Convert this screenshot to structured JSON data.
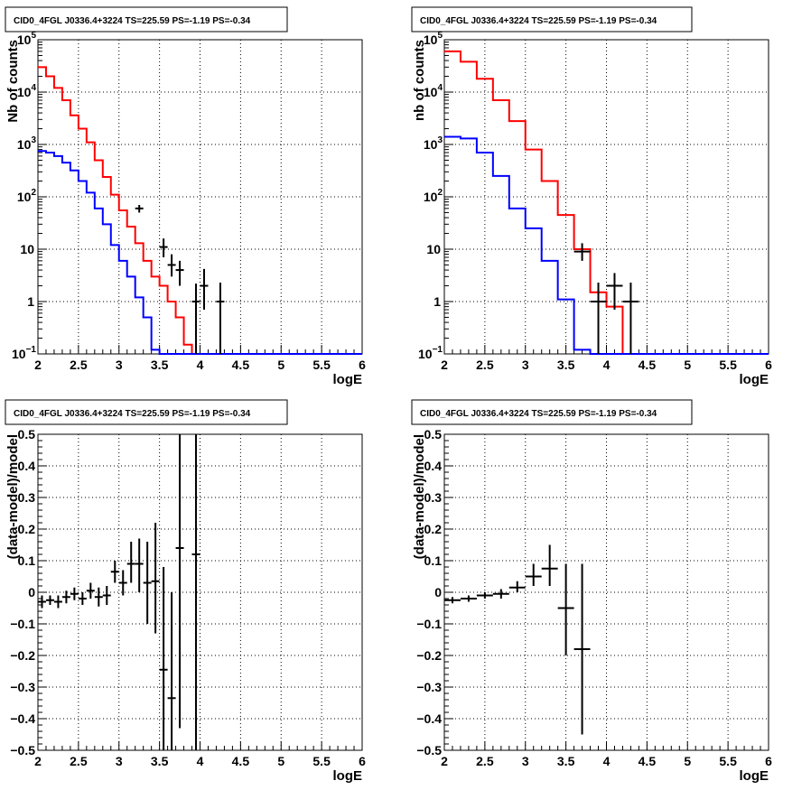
{
  "chart_data": [
    {
      "type": "histogram-step",
      "title": "CID0_4FGL J0336.4+3224 TS=225.59 PS=-1.19 PS=-0.34",
      "xlabel": "logE",
      "ylabel": "Nb of counts",
      "xlim": [
        2,
        6
      ],
      "ylim": [
        0.1,
        100000
      ],
      "yscale": "log",
      "grid": true,
      "xticks": [
        "2",
        "2.5",
        "3",
        "3.5",
        "4",
        "4.5",
        "5",
        "5.5",
        "6"
      ],
      "yticks": [
        {
          "base": "10",
          "exp": "−1"
        },
        {
          "base": "1",
          "exp": ""
        },
        {
          "base": "10",
          "exp": ""
        },
        {
          "base": "10",
          "exp": "2"
        },
        {
          "base": "10",
          "exp": "3"
        },
        {
          "base": "10",
          "exp": "4"
        },
        {
          "base": "10",
          "exp": "5"
        }
      ],
      "bin_edges": [
        2.0,
        2.1,
        2.2,
        2.3,
        2.4,
        2.5,
        2.6,
        2.7,
        2.8,
        2.9,
        3.0,
        3.1,
        3.2,
        3.3,
        3.4,
        3.5,
        3.6,
        3.7,
        3.8,
        3.9,
        4.0,
        4.1,
        4.2,
        4.3,
        4.4,
        4.5,
        4.6,
        4.7,
        4.8,
        4.9,
        5.0,
        5.1,
        5.2,
        5.3,
        5.4,
        5.5,
        5.6,
        5.7,
        5.8,
        5.9,
        6.0
      ],
      "series": [
        {
          "color": "#ff0000",
          "values": [
            30000,
            20000,
            12000,
            7000,
            3600,
            2000,
            1100,
            500,
            240,
            110,
            55,
            27,
            13,
            6,
            3,
            2,
            1,
            0.5,
            0.15,
            0.1,
            0.1,
            0.1,
            0.1,
            0.1,
            0.1,
            0.1,
            0.1,
            0.1,
            0.1,
            0.1,
            0.1,
            0.1,
            0.1,
            0.1,
            0.1,
            0.1,
            0.1,
            0.1,
            0.1,
            0.1
          ]
        },
        {
          "color": "#0000ff",
          "values": [
            750,
            700,
            600,
            450,
            320,
            200,
            120,
            60,
            30,
            12,
            6,
            3,
            1.2,
            0.5,
            0.12,
            0.1,
            0.1,
            0.1,
            0.1,
            0.1,
            0.1,
            0.1,
            0.1,
            0.1,
            0.1,
            0.1,
            0.1,
            0.1,
            0.1,
            0.1,
            0.1,
            0.1,
            0.1,
            0.1,
            0.1,
            0.1,
            0.1,
            0.1,
            0.1,
            0.1
          ]
        }
      ],
      "points": [
        {
          "x": 3.25,
          "y": 60,
          "ylo": 50,
          "yhi": 70,
          "xerr": 0.05
        },
        {
          "x": 3.55,
          "y": 11,
          "ylo": 7,
          "yhi": 16,
          "xerr": 0.05
        },
        {
          "x": 3.65,
          "y": 5,
          "ylo": 3,
          "yhi": 8,
          "xerr": 0.05
        },
        {
          "x": 3.75,
          "y": 4,
          "ylo": 2,
          "yhi": 6,
          "xerr": 0.05
        },
        {
          "x": 3.95,
          "y": 1,
          "ylo": 0.1,
          "yhi": 2.2,
          "xerr": 0.05
        },
        {
          "x": 4.05,
          "y": 2,
          "ylo": 0.7,
          "yhi": 4.2,
          "xerr": 0.05
        },
        {
          "x": 4.25,
          "y": 1,
          "ylo": 0.1,
          "yhi": 2.3,
          "xerr": 0.05
        }
      ]
    },
    {
      "type": "histogram-step",
      "title": "CID0_4FGL J0336.4+3224 TS=225.59 PS=-1.19 PS=-0.34",
      "xlabel": "logE",
      "ylabel": "nb of counts",
      "xlim": [
        2,
        6
      ],
      "ylim": [
        0.1,
        100000
      ],
      "yscale": "log",
      "grid": true,
      "xticks": [
        "2",
        "2.5",
        "3",
        "3.5",
        "4",
        "4.5",
        "5",
        "5.5",
        "6"
      ],
      "yticks": [
        {
          "base": "10",
          "exp": "−1"
        },
        {
          "base": "1",
          "exp": ""
        },
        {
          "base": "10",
          "exp": ""
        },
        {
          "base": "10",
          "exp": "2"
        },
        {
          "base": "10",
          "exp": "3"
        },
        {
          "base": "10",
          "exp": "4"
        },
        {
          "base": "10",
          "exp": "5"
        }
      ],
      "bin_edges": [
        2.0,
        2.2,
        2.4,
        2.6,
        2.8,
        3.0,
        3.2,
        3.4,
        3.6,
        3.8,
        4.0,
        4.2,
        4.4,
        4.6,
        4.8,
        5.0,
        5.2,
        5.4,
        5.6,
        5.8,
        6.0
      ],
      "series": [
        {
          "color": "#ff0000",
          "values": [
            60000,
            38000,
            18000,
            7000,
            2800,
            800,
            200,
            45,
            10,
            1.5,
            0.8,
            0.1,
            0.1,
            0.1,
            0.1,
            0.1,
            0.1,
            0.1,
            0.1,
            0.1
          ]
        },
        {
          "color": "#0000ff",
          "values": [
            1400,
            1300,
            700,
            250,
            60,
            25,
            6,
            1.1,
            0.12,
            0.1,
            0.1,
            0.1,
            0.1,
            0.1,
            0.1,
            0.1,
            0.1,
            0.1,
            0.1,
            0.1
          ]
        }
      ],
      "points": [
        {
          "x": 3.7,
          "y": 9,
          "ylo": 6,
          "yhi": 13,
          "xerr": 0.1
        },
        {
          "x": 3.9,
          "y": 1,
          "ylo": 0.1,
          "yhi": 2.3,
          "xerr": 0.1
        },
        {
          "x": 4.1,
          "y": 2,
          "ylo": 0.7,
          "yhi": 3.5,
          "xerr": 0.1
        },
        {
          "x": 4.3,
          "y": 1,
          "ylo": 0.1,
          "yhi": 2.3,
          "xerr": 0.1
        }
      ]
    },
    {
      "type": "scatter-errorbar",
      "title": "CID0_4FGL J0336.4+3224 TS=225.59 PS=-1.19 PS=-0.34",
      "xlabel": "logE",
      "ylabel": "(data-model)/model",
      "xlim": [
        2,
        6
      ],
      "ylim": [
        -0.5,
        0.5
      ],
      "grid": true,
      "xticks": [
        "2",
        "2.5",
        "3",
        "3.5",
        "4",
        "4.5",
        "5",
        "5.5",
        "6"
      ],
      "yticks": [
        "−0.5",
        "−0.4",
        "−0.3",
        "−0.2",
        "−0.1",
        "0",
        "0.1",
        "0.2",
        "0.3",
        "0.4",
        "0.5"
      ],
      "points": [
        {
          "x": 2.05,
          "y": -0.03,
          "ylo": -0.05,
          "yhi": -0.01,
          "xerr": 0.05
        },
        {
          "x": 2.15,
          "y": -0.025,
          "ylo": -0.04,
          "yhi": -0.01,
          "xerr": 0.05
        },
        {
          "x": 2.25,
          "y": -0.03,
          "ylo": -0.05,
          "yhi": -0.01,
          "xerr": 0.05
        },
        {
          "x": 2.35,
          "y": -0.015,
          "ylo": -0.035,
          "yhi": 0.005,
          "xerr": 0.05
        },
        {
          "x": 2.45,
          "y": -0.005,
          "ylo": -0.025,
          "yhi": 0.015,
          "xerr": 0.05
        },
        {
          "x": 2.55,
          "y": -0.02,
          "ylo": -0.04,
          "yhi": 0.0,
          "xerr": 0.05
        },
        {
          "x": 2.65,
          "y": 0.005,
          "ylo": -0.02,
          "yhi": 0.03,
          "xerr": 0.05
        },
        {
          "x": 2.75,
          "y": -0.015,
          "ylo": -0.045,
          "yhi": 0.015,
          "xerr": 0.05
        },
        {
          "x": 2.85,
          "y": -0.01,
          "ylo": -0.04,
          "yhi": 0.02,
          "xerr": 0.05
        },
        {
          "x": 2.95,
          "y": 0.065,
          "ylo": 0.03,
          "yhi": 0.1,
          "xerr": 0.05
        },
        {
          "x": 3.05,
          "y": 0.03,
          "ylo": -0.01,
          "yhi": 0.07,
          "xerr": 0.05
        },
        {
          "x": 3.15,
          "y": 0.09,
          "ylo": 0.03,
          "yhi": 0.16,
          "xerr": 0.05
        },
        {
          "x": 3.25,
          "y": 0.09,
          "ylo": 0.0,
          "yhi": 0.17,
          "xerr": 0.05
        },
        {
          "x": 3.35,
          "y": 0.03,
          "ylo": -0.1,
          "yhi": 0.16,
          "xerr": 0.05
        },
        {
          "x": 3.45,
          "y": 0.035,
          "ylo": -0.13,
          "yhi": 0.22,
          "xerr": 0.05
        },
        {
          "x": 3.55,
          "y": -0.245,
          "ylo": -0.5,
          "yhi": 0.08,
          "xerr": 0.05
        },
        {
          "x": 3.65,
          "y": -0.335,
          "ylo": -0.5,
          "yhi": 0.0,
          "xerr": 0.05
        },
        {
          "x": 3.75,
          "y": 0.14,
          "ylo": -0.43,
          "yhi": 0.5,
          "xerr": 0.05
        },
        {
          "x": 3.95,
          "y": 0.12,
          "ylo": -0.5,
          "yhi": 0.5,
          "xerr": 0.05
        }
      ]
    },
    {
      "type": "scatter-errorbar",
      "title": "CID0_4FGL J0336.4+3224 TS=225.59 PS=-1.19 PS=-0.34",
      "xlabel": "logE",
      "ylabel": "(data-model)/model",
      "xlim": [
        2,
        6
      ],
      "ylim": [
        -0.5,
        0.5
      ],
      "grid": true,
      "xticks": [
        "2",
        "2.5",
        "3",
        "3.5",
        "4",
        "4.5",
        "5",
        "5.5",
        "6"
      ],
      "yticks": [
        "−0.5",
        "−0.4",
        "−0.3",
        "−0.2",
        "−0.1",
        "0",
        "0.1",
        "0.2",
        "0.3",
        "0.4",
        "0.5"
      ],
      "points": [
        {
          "x": 2.1,
          "y": -0.025,
          "ylo": -0.035,
          "yhi": -0.015,
          "xerr": 0.1
        },
        {
          "x": 2.3,
          "y": -0.02,
          "ylo": -0.03,
          "yhi": -0.01,
          "xerr": 0.1
        },
        {
          "x": 2.5,
          "y": -0.01,
          "ylo": -0.02,
          "yhi": 0.0,
          "xerr": 0.1
        },
        {
          "x": 2.7,
          "y": -0.005,
          "ylo": -0.02,
          "yhi": 0.01,
          "xerr": 0.1
        },
        {
          "x": 2.9,
          "y": 0.015,
          "ylo": 0.0,
          "yhi": 0.035,
          "xerr": 0.1
        },
        {
          "x": 3.1,
          "y": 0.05,
          "ylo": 0.02,
          "yhi": 0.09,
          "xerr": 0.1
        },
        {
          "x": 3.3,
          "y": 0.075,
          "ylo": 0.02,
          "yhi": 0.15,
          "xerr": 0.1
        },
        {
          "x": 3.5,
          "y": -0.05,
          "ylo": -0.2,
          "yhi": 0.09,
          "xerr": 0.1
        },
        {
          "x": 3.7,
          "y": -0.18,
          "ylo": -0.45,
          "yhi": 0.09,
          "xerr": 0.1
        }
      ]
    }
  ]
}
